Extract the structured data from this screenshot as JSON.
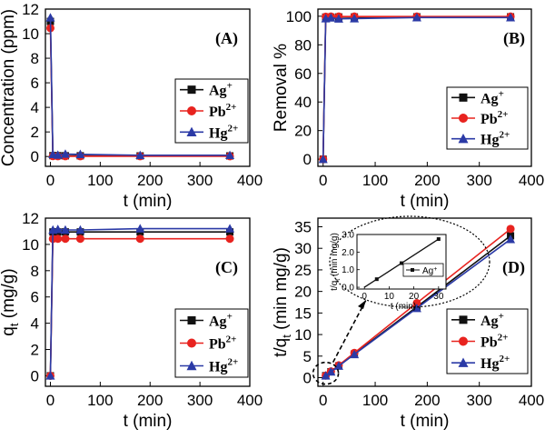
{
  "chart_data": [
    {
      "type": "line",
      "panel_label": "(A)",
      "xlabel": "t (min)",
      "ylabel": "Concentration (ppm)",
      "xlim": [
        -10,
        400
      ],
      "ylim": [
        -0.8,
        12
      ],
      "xticks": [
        0,
        100,
        200,
        300,
        400
      ],
      "yticks": [
        0,
        2,
        4,
        6,
        8,
        10,
        12
      ],
      "legend": "right",
      "series": [
        {
          "name": "Ag+",
          "color": "#111111",
          "marker": "square",
          "x": [
            0,
            5,
            15,
            30,
            60,
            180,
            360
          ],
          "y": [
            11.0,
            0.07,
            0.07,
            0.06,
            0.06,
            0.05,
            0.05
          ]
        },
        {
          "name": "Pb2+",
          "color": "#e8231f",
          "marker": "circle",
          "x": [
            0,
            5,
            15,
            30,
            60,
            180,
            360
          ],
          "y": [
            10.45,
            0.03,
            0.02,
            0.02,
            0.02,
            0.02,
            0.02
          ]
        },
        {
          "name": "Hg2+",
          "color": "#2b3aa6",
          "marker": "triangle",
          "x": [
            0,
            5,
            15,
            30,
            60,
            180,
            360
          ],
          "y": [
            11.3,
            0.18,
            0.12,
            0.2,
            0.18,
            0.1,
            0.1
          ]
        }
      ]
    },
    {
      "type": "line",
      "panel_label": "(B)",
      "xlabel": "t (min)",
      "ylabel": "Removal %",
      "xlim": [
        -10,
        400
      ],
      "ylim": [
        -5,
        105
      ],
      "xticks": [
        0,
        100,
        200,
        300,
        400
      ],
      "yticks": [
        0,
        20,
        40,
        60,
        80,
        100
      ],
      "legend": "right",
      "series": [
        {
          "name": "Ag+",
          "color": "#111111",
          "marker": "square",
          "x": [
            0,
            5,
            15,
            30,
            60,
            180,
            360
          ],
          "y": [
            0,
            99.4,
            99.4,
            99.5,
            99.5,
            99.6,
            99.6
          ]
        },
        {
          "name": "Pb2+",
          "color": "#e8231f",
          "marker": "circle",
          "x": [
            0,
            5,
            15,
            30,
            60,
            180,
            360
          ],
          "y": [
            0,
            99.7,
            99.8,
            99.8,
            99.8,
            99.8,
            99.8
          ]
        },
        {
          "name": "Hg2+",
          "color": "#2b3aa6",
          "marker": "triangle",
          "x": [
            0,
            5,
            15,
            30,
            60,
            180,
            360
          ],
          "y": [
            0,
            98.4,
            98.9,
            98.2,
            98.4,
            99.1,
            99.1
          ]
        }
      ]
    },
    {
      "type": "line",
      "panel_label": "(C)",
      "xlabel": "t (min)",
      "ylabel": "q",
      "ylabel_sub": "t",
      "ylabel_rest": " (mg/g)",
      "xlim": [
        -10,
        400
      ],
      "ylim": [
        -0.8,
        12
      ],
      "xticks": [
        0,
        100,
        200,
        300,
        400
      ],
      "yticks": [
        0,
        2,
        4,
        6,
        8,
        10,
        12
      ],
      "legend": "right",
      "series": [
        {
          "name": "Ag+",
          "color": "#111111",
          "marker": "square",
          "x": [
            0,
            5,
            15,
            30,
            60,
            180,
            360
          ],
          "y": [
            0,
            10.95,
            10.95,
            10.95,
            10.95,
            10.95,
            10.95
          ]
        },
        {
          "name": "Pb2+",
          "color": "#e8231f",
          "marker": "circle",
          "x": [
            0,
            5,
            15,
            30,
            60,
            180,
            360
          ],
          "y": [
            0,
            10.42,
            10.43,
            10.43,
            10.43,
            10.43,
            10.43
          ]
        },
        {
          "name": "Hg2+",
          "color": "#2b3aa6",
          "marker": "triangle",
          "x": [
            0,
            5,
            15,
            30,
            60,
            180,
            360
          ],
          "y": [
            0,
            11.1,
            11.15,
            11.1,
            11.1,
            11.2,
            11.2
          ]
        }
      ]
    },
    {
      "type": "line",
      "panel_label": "(D)",
      "xlabel": "t (min)",
      "ylabel": "t/q",
      "ylabel_sub": "t",
      "ylabel_rest": " (min mg/g)",
      "xlim": [
        -10,
        400
      ],
      "ylim": [
        -2,
        37
      ],
      "xticks": [
        0,
        100,
        200,
        300,
        400
      ],
      "yticks": [
        0,
        5,
        10,
        15,
        20,
        25,
        30,
        35
      ],
      "legend": "right",
      "series": [
        {
          "name": "Ag+",
          "color": "#111111",
          "marker": "square",
          "x": [
            5,
            15,
            30,
            60,
            180,
            360
          ],
          "y": [
            0.46,
            1.37,
            2.74,
            5.48,
            16.4,
            32.9
          ]
        },
        {
          "name": "Pb2+",
          "color": "#e8231f",
          "marker": "circle",
          "x": [
            5,
            15,
            30,
            60,
            180,
            360
          ],
          "y": [
            0.48,
            1.44,
            2.88,
            5.75,
            17.3,
            34.5
          ]
        },
        {
          "name": "Hg2+",
          "color": "#2b3aa6",
          "marker": "triangle",
          "x": [
            5,
            15,
            30,
            60,
            180,
            360
          ],
          "y": [
            0.45,
            1.35,
            2.7,
            5.4,
            16.1,
            32.1
          ]
        }
      ],
      "inset": {
        "xlabel": "t (min)",
        "ylabel": "t/q",
        "ylabel_sub": "t",
        "ylabel_rest": " (min mg/g)",
        "xlim": [
          -3,
          33
        ],
        "ylim": [
          -0.1,
          3.0
        ],
        "xticks": [
          0,
          10,
          20,
          30
        ],
        "yticks": [
          "0.0",
          "1.0",
          "2.0",
          "3.0"
        ],
        "series": [
          {
            "name": "Ag+",
            "color": "#111111",
            "marker": "square",
            "x": [
              5,
              15,
              30
            ],
            "y": [
              0.46,
              1.37,
              2.74
            ]
          }
        ]
      }
    }
  ],
  "legend_labels": [
    {
      "base": "Ag",
      "sup": "+"
    },
    {
      "base": "Pb",
      "sup": "2+"
    },
    {
      "base": "Hg",
      "sup": "2+"
    }
  ],
  "inset_legend_label": {
    "base": "Ag",
    "sup": "+"
  }
}
